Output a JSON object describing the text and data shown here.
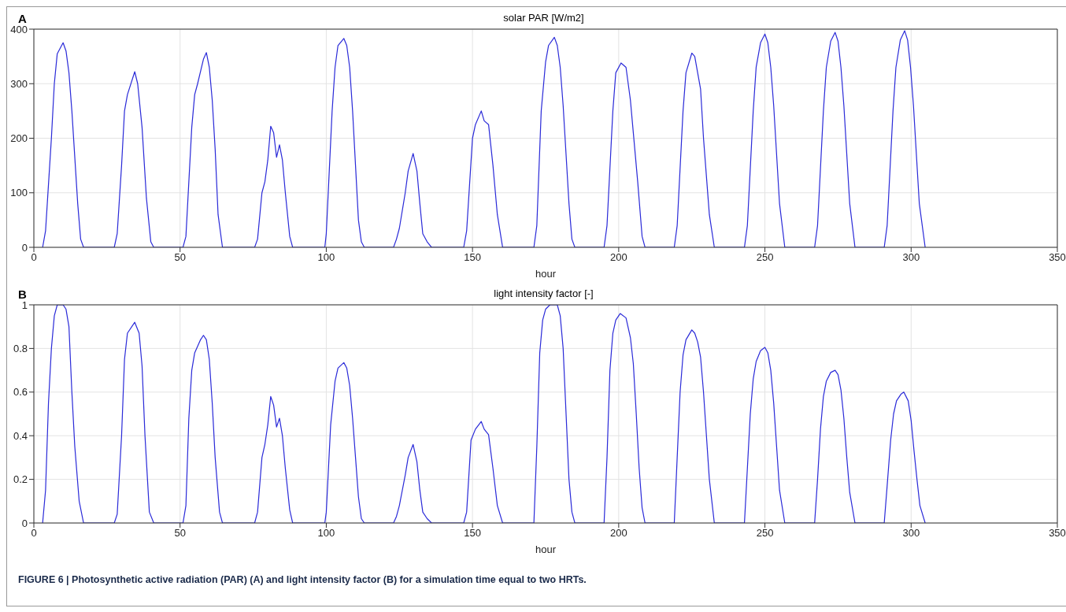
{
  "chart_data": [
    {
      "type": "line",
      "title": "solar PAR [W/m2]",
      "xlabel": "hour",
      "annotations": [
        "A"
      ],
      "xlim": [
        0,
        350
      ],
      "xticks": [
        0,
        50,
        100,
        150,
        200,
        250,
        300,
        350
      ],
      "ylim": [
        0,
        400
      ],
      "yticks": [
        0,
        100,
        200,
        300,
        400
      ],
      "grid": true,
      "marker": "none",
      "line_style": "solid",
      "series": [
        {
          "color": "#2a2ad8",
          "x": [
            3,
            4,
            6,
            7,
            8,
            10,
            11,
            12,
            13,
            15,
            16,
            17,
            27.5,
            28.5,
            30,
            31,
            32,
            34.5,
            35.5,
            37,
            38.5,
            40,
            41,
            51,
            52,
            54,
            55,
            56,
            58,
            59,
            60,
            61,
            62,
            63,
            64.5,
            75.5,
            76.5,
            78,
            79,
            80,
            81,
            82,
            83,
            84,
            85,
            86,
            87.5,
            88.5,
            99.5,
            100,
            102,
            103,
            104,
            106,
            107,
            108,
            109,
            110,
            111,
            112,
            113,
            123,
            124,
            125,
            127,
            128,
            129.7,
            131,
            132,
            133,
            134.5,
            136,
            147,
            148,
            150,
            151,
            153,
            154,
            155.5,
            157,
            158.5,
            160.3,
            171,
            172,
            173.5,
            175,
            176,
            178,
            179,
            180,
            181,
            183,
            184,
            185,
            195,
            196,
            198,
            199,
            200.8,
            202.5,
            204,
            205,
            206.5,
            208,
            209,
            219,
            220,
            222,
            223,
            225,
            226,
            227,
            228,
            229,
            231,
            232.7,
            243,
            244,
            246,
            247,
            248.5,
            250,
            251,
            252,
            253,
            255,
            256.8,
            267,
            268,
            270,
            271,
            272.5,
            274,
            275,
            276,
            277,
            279,
            280.8,
            290.8,
            291.8,
            293.8,
            294.8,
            296.3,
            297.8,
            298.8,
            299.8,
            300.8,
            302.8,
            304.8
          ],
          "values": [
            0,
            30,
            200,
            300,
            355,
            375,
            360,
            320,
            250,
            80,
            15,
            0,
            0,
            25,
            150,
            250,
            280,
            322,
            300,
            220,
            90,
            10,
            0,
            0,
            20,
            220,
            280,
            300,
            345,
            357,
            330,
            270,
            180,
            60,
            0,
            0,
            15,
            100,
            120,
            160,
            222,
            210,
            165,
            188,
            160,
            100,
            20,
            0,
            0,
            25,
            250,
            330,
            370,
            383,
            370,
            330,
            250,
            150,
            50,
            10,
            0,
            0,
            15,
            35,
            100,
            140,
            172,
            140,
            80,
            25,
            10,
            0,
            0,
            30,
            200,
            225,
            250,
            232,
            225,
            150,
            60,
            0,
            0,
            40,
            250,
            340,
            370,
            385,
            370,
            330,
            260,
            80,
            15,
            0,
            0,
            40,
            250,
            320,
            338,
            330,
            270,
            210,
            120,
            20,
            0,
            0,
            40,
            250,
            320,
            356,
            350,
            320,
            290,
            200,
            60,
            0,
            0,
            40,
            250,
            330,
            375,
            391,
            375,
            330,
            260,
            80,
            0,
            0,
            40,
            250,
            330,
            378,
            394,
            378,
            330,
            260,
            80,
            0,
            0,
            40,
            250,
            330,
            380,
            397,
            380,
            330,
            260,
            80,
            0
          ]
        }
      ]
    },
    {
      "type": "line",
      "title": "light intensity factor [-]",
      "xlabel": "hour",
      "annotations": [
        "B",
        "FIGURE 6 | Photosynthetic active radiation (PAR) (A) and light intensity factor (B) for a simulation time equal to two HRTs."
      ],
      "xlim": [
        0,
        350
      ],
      "xticks": [
        0,
        50,
        100,
        150,
        200,
        250,
        300,
        350
      ],
      "ylim": [
        0,
        1
      ],
      "yticks": [
        0,
        0.2,
        0.4,
        0.6,
        0.8,
        1
      ],
      "grid": true,
      "marker": "none",
      "line_style": "solid",
      "series": [
        {
          "color": "#2a2ad8",
          "x": [
            3,
            4,
            5,
            6,
            7,
            8,
            10,
            11,
            12,
            13,
            14,
            15.5,
            17,
            27.5,
            28.5,
            30,
            31,
            32,
            34.5,
            36,
            37,
            38,
            39.5,
            41,
            51,
            52,
            53,
            54,
            55,
            57,
            58,
            59,
            60,
            61,
            62,
            63.5,
            64.5,
            75.5,
            76.5,
            78,
            79,
            80,
            81,
            82,
            83,
            84,
            85,
            86,
            87.5,
            88.5,
            99.5,
            100,
            101.5,
            103,
            104,
            106,
            107,
            108,
            109,
            110,
            111,
            112,
            113,
            123,
            124,
            125,
            127,
            128,
            129.7,
            131,
            132,
            133,
            134.5,
            136,
            147,
            148,
            149.5,
            151,
            153,
            154,
            155.5,
            157,
            158.5,
            160.3,
            171,
            172,
            173,
            174,
            175,
            176.5,
            179,
            180,
            181,
            182,
            183,
            184,
            185,
            195,
            196,
            197,
            198,
            199,
            200.5,
            202.5,
            204,
            205,
            206,
            207,
            208,
            209,
            219,
            220,
            221,
            222,
            223,
            225,
            226,
            227,
            228,
            229,
            230,
            231,
            232.7,
            243,
            244,
            245,
            246,
            247,
            248.5,
            250,
            251,
            252,
            253,
            254,
            255,
            256.8,
            267,
            268,
            269,
            270,
            271,
            272.5,
            274,
            275,
            276,
            277,
            278,
            279,
            280.8,
            290.8,
            291.8,
            293,
            294,
            295,
            296.5,
            297.5,
            299,
            300,
            301,
            302,
            303,
            304.8
          ],
          "values": [
            0,
            0.15,
            0.55,
            0.8,
            0.95,
            1,
            1,
            0.98,
            0.9,
            0.6,
            0.35,
            0.1,
            0,
            0,
            0.04,
            0.4,
            0.75,
            0.87,
            0.92,
            0.87,
            0.72,
            0.4,
            0.05,
            0,
            0,
            0.08,
            0.48,
            0.7,
            0.78,
            0.84,
            0.86,
            0.84,
            0.75,
            0.55,
            0.3,
            0.05,
            0,
            0,
            0.05,
            0.3,
            0.36,
            0.45,
            0.58,
            0.54,
            0.44,
            0.48,
            0.4,
            0.25,
            0.06,
            0,
            0,
            0.05,
            0.45,
            0.65,
            0.71,
            0.735,
            0.71,
            0.63,
            0.48,
            0.3,
            0.12,
            0.02,
            0,
            0,
            0.03,
            0.08,
            0.22,
            0.3,
            0.36,
            0.28,
            0.15,
            0.05,
            0.02,
            0,
            0,
            0.05,
            0.38,
            0.43,
            0.465,
            0.43,
            0.405,
            0.25,
            0.08,
            0,
            0,
            0.35,
            0.78,
            0.93,
            0.98,
            1,
            1,
            0.95,
            0.8,
            0.5,
            0.2,
            0.05,
            0,
            0,
            0.3,
            0.7,
            0.87,
            0.93,
            0.96,
            0.94,
            0.85,
            0.73,
            0.5,
            0.25,
            0.07,
            0,
            0,
            0.3,
            0.6,
            0.77,
            0.84,
            0.885,
            0.87,
            0.83,
            0.76,
            0.6,
            0.4,
            0.2,
            0,
            0,
            0.25,
            0.5,
            0.66,
            0.74,
            0.79,
            0.805,
            0.78,
            0.7,
            0.55,
            0.35,
            0.15,
            0,
            0,
            0.2,
            0.43,
            0.58,
            0.65,
            0.69,
            0.7,
            0.68,
            0.61,
            0.48,
            0.3,
            0.14,
            0,
            0,
            0.17,
            0.38,
            0.5,
            0.56,
            0.59,
            0.6,
            0.56,
            0.47,
            0.33,
            0.2,
            0.08,
            0
          ]
        }
      ]
    }
  ]
}
